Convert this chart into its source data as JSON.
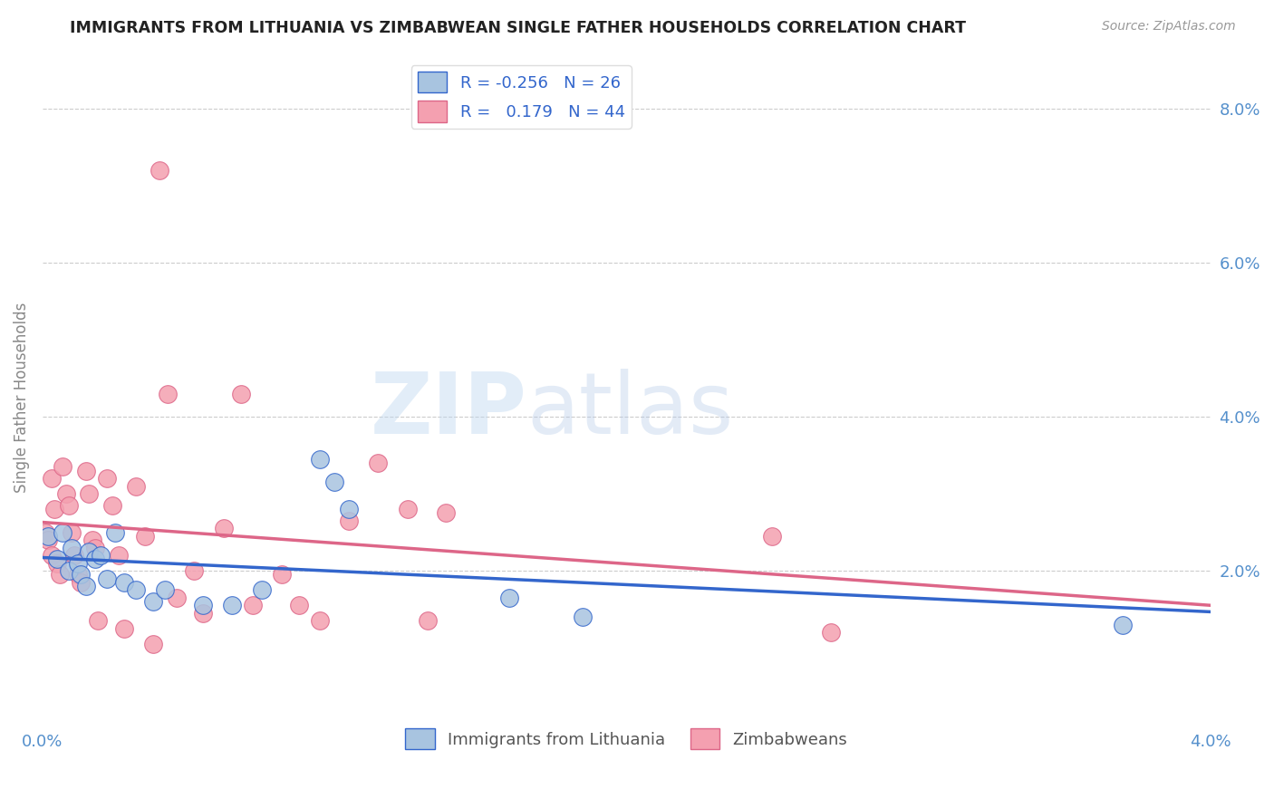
{
  "title": "IMMIGRANTS FROM LITHUANIA VS ZIMBABWEAN SINGLE FATHER HOUSEHOLDS CORRELATION CHART",
  "source": "Source: ZipAtlas.com",
  "ylabel": "Single Father Households",
  "xlim": [
    0.0,
    0.04
  ],
  "ylim": [
    0.0,
    0.085
  ],
  "x_ticks": [
    0.0,
    0.01,
    0.02,
    0.03,
    0.04
  ],
  "x_tick_labels": [
    "0.0%",
    "",
    "",
    "",
    "4.0%"
  ],
  "y_ticks_right": [
    0.0,
    0.02,
    0.04,
    0.06,
    0.08
  ],
  "y_tick_labels_right": [
    "",
    "2.0%",
    "4.0%",
    "6.0%",
    "8.0%"
  ],
  "grid_color": "#cccccc",
  "background_color": "#ffffff",
  "lithuania_color": "#a8c4e0",
  "zimbabwe_color": "#f4a0b0",
  "lithuania_line_color": "#3366cc",
  "zimbabwe_line_color": "#dd6688",
  "legend_r_lithuania": "-0.256",
  "legend_n_lithuania": "26",
  "legend_r_zimbabwe": "0.179",
  "legend_n_zimbabwe": "44",
  "watermark_zip": "ZIP",
  "watermark_atlas": "atlas",
  "lithuania_x": [
    0.0002,
    0.0005,
    0.0007,
    0.0009,
    0.001,
    0.0012,
    0.0013,
    0.0015,
    0.0016,
    0.0018,
    0.002,
    0.0022,
    0.0025,
    0.0028,
    0.0032,
    0.0038,
    0.0042,
    0.0055,
    0.0065,
    0.0075,
    0.0095,
    0.01,
    0.0105,
    0.016,
    0.0185,
    0.037
  ],
  "lithuania_y": [
    0.0245,
    0.0215,
    0.025,
    0.02,
    0.023,
    0.021,
    0.0195,
    0.018,
    0.0225,
    0.0215,
    0.022,
    0.019,
    0.025,
    0.0185,
    0.0175,
    0.016,
    0.0175,
    0.0155,
    0.0155,
    0.0175,
    0.0345,
    0.0315,
    0.028,
    0.0165,
    0.014,
    0.013
  ],
  "zimbabwe_x": [
    0.0001,
    0.0002,
    0.0003,
    0.0003,
    0.0004,
    0.0005,
    0.0006,
    0.0007,
    0.0008,
    0.0009,
    0.001,
    0.0011,
    0.0012,
    0.0013,
    0.0015,
    0.0016,
    0.0017,
    0.0018,
    0.0019,
    0.0022,
    0.0024,
    0.0026,
    0.0028,
    0.0032,
    0.0035,
    0.0038,
    0.004,
    0.0043,
    0.0046,
    0.0052,
    0.0055,
    0.0062,
    0.0068,
    0.0072,
    0.0082,
    0.0088,
    0.0095,
    0.0105,
    0.0115,
    0.0125,
    0.0132,
    0.0138,
    0.025,
    0.027
  ],
  "zimbabwe_y": [
    0.025,
    0.024,
    0.032,
    0.022,
    0.028,
    0.021,
    0.0195,
    0.0335,
    0.03,
    0.0285,
    0.025,
    0.022,
    0.0195,
    0.0185,
    0.033,
    0.03,
    0.024,
    0.023,
    0.0135,
    0.032,
    0.0285,
    0.022,
    0.0125,
    0.031,
    0.0245,
    0.0105,
    0.072,
    0.043,
    0.0165,
    0.02,
    0.0145,
    0.0255,
    0.043,
    0.0155,
    0.0195,
    0.0155,
    0.0135,
    0.0265,
    0.034,
    0.028,
    0.0135,
    0.0275,
    0.0245,
    0.012
  ]
}
